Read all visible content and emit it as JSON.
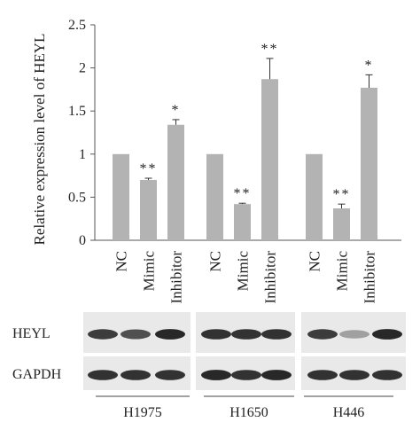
{
  "chart_data": {
    "type": "bar",
    "ylabel": "Relative expression level of HEYL",
    "ylim": [
      0,
      2.5
    ],
    "yticks": [
      "0",
      "0.5",
      "1",
      "1.5",
      "2",
      "2.5"
    ],
    "groups": [
      {
        "name": "H1975",
        "bars": [
          {
            "label": "NC",
            "value": 1.0,
            "error": 0.0,
            "sig": ""
          },
          {
            "label": "Mimic",
            "value": 0.7,
            "error": 0.02,
            "sig": "**"
          },
          {
            "label": "Inhibitor",
            "value": 1.34,
            "error": 0.06,
            "sig": "*"
          }
        ]
      },
      {
        "name": "H1650",
        "bars": [
          {
            "label": "NC",
            "value": 1.0,
            "error": 0.0,
            "sig": ""
          },
          {
            "label": "Mimic",
            "value": 0.42,
            "error": 0.01,
            "sig": "**"
          },
          {
            "label": "Inhibitor",
            "value": 1.87,
            "error": 0.24,
            "sig": "**"
          }
        ]
      },
      {
        "name": "H446",
        "bars": [
          {
            "label": "NC",
            "value": 1.0,
            "error": 0.0,
            "sig": ""
          },
          {
            "label": "Mimic",
            "value": 0.37,
            "error": 0.05,
            "sig": "**"
          },
          {
            "label": "Inhibitor",
            "value": 1.77,
            "error": 0.15,
            "sig": "*"
          }
        ]
      }
    ],
    "bar_color": "#b3b3b3"
  },
  "blot": {
    "rows": [
      {
        "label": "HEYL"
      },
      {
        "label": "GAPDH"
      }
    ],
    "cell_lines": [
      "H1975",
      "H1650",
      "H446"
    ]
  }
}
